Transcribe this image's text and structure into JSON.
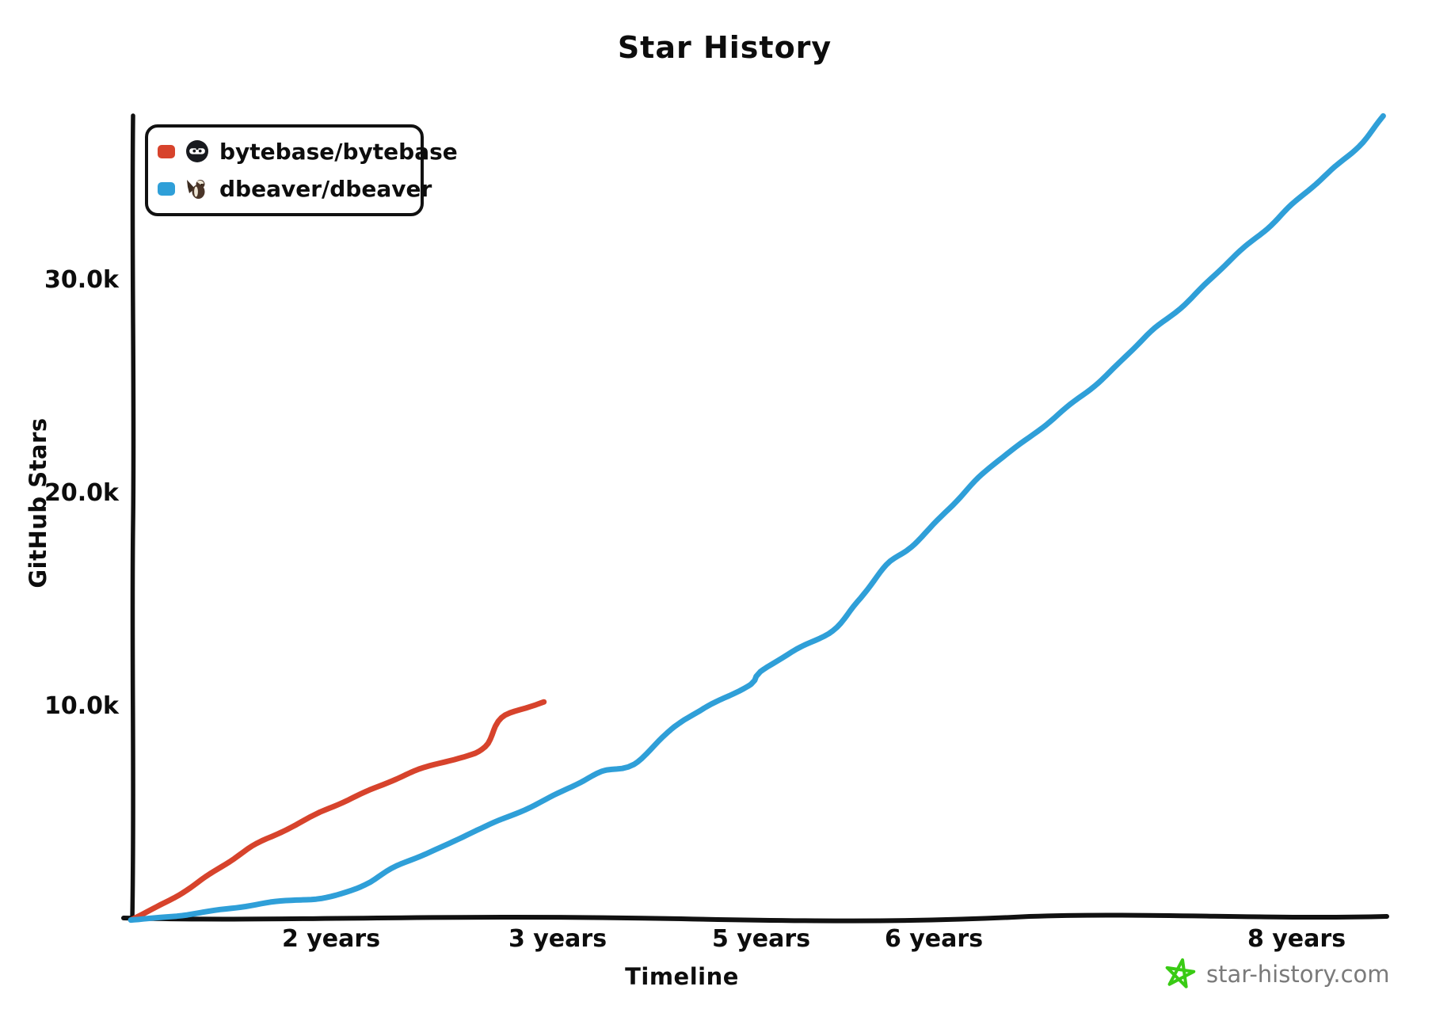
{
  "page": {
    "title": "Star History",
    "watermark_text": "star-history.com"
  },
  "chart": {
    "title": "Star History",
    "x_axis": {
      "label": "Timeline",
      "tick_labels": [
        "2 years",
        "3 years",
        "5 years",
        "6 years",
        "8 years"
      ]
    },
    "y_axis": {
      "label": "GitHub Stars",
      "tick_labels": [
        "10.0k",
        "20.0k",
        "30.0k"
      ]
    },
    "legend": [
      {
        "label": "bytebase/bytebase",
        "color": "#d7432c",
        "icon": "bytebase-avatar"
      },
      {
        "label": "dbeaver/dbeaver",
        "color": "#2f9fd8",
        "icon": "dbeaver-avatar"
      }
    ],
    "watermark": {
      "text": "star-history.com",
      "text_color": "#7a7a7a",
      "icon": "green-star-icon",
      "icon_color": "#39cb14"
    },
    "colors": {
      "axis": "#111111",
      "background": "#ffffff"
    }
  },
  "chart_data": {
    "type": "line",
    "title": "Star History",
    "xlabel": "Timeline",
    "ylabel": "GitHub Stars",
    "x_unit": "years since repo creation",
    "x_tick_years": [
      2,
      3,
      5,
      6,
      8
    ],
    "x_tick_labels": [
      "2 years",
      "3 years",
      "5 years",
      "6 years",
      "8 years"
    ],
    "y_ticks": [
      10000,
      20000,
      30000
    ],
    "y_tick_labels": [
      "10.0k",
      "20.0k",
      "30.0k"
    ],
    "ylim": [
      0,
      38500
    ],
    "xlim_years": [
      0,
      8.6
    ],
    "grid": false,
    "legend_position": "top-left",
    "series": [
      {
        "name": "bytebase/bytebase",
        "color": "#d7432c",
        "points": [
          [
            0,
            0
          ],
          [
            0.25,
            600
          ],
          [
            0.51,
            1300
          ],
          [
            0.75,
            2000
          ],
          [
            0.99,
            2700
          ],
          [
            1.22,
            3400
          ],
          [
            1.46,
            4000
          ],
          [
            1.7,
            4600
          ],
          [
            1.94,
            5200
          ],
          [
            2.11,
            5800
          ],
          [
            2.25,
            6400
          ],
          [
            2.39,
            7000
          ],
          [
            2.5,
            7400
          ],
          [
            2.6,
            7700
          ],
          [
            2.65,
            7900
          ],
          [
            2.69,
            8300
          ],
          [
            2.72,
            9100
          ],
          [
            2.75,
            9500
          ],
          [
            2.79,
            9700
          ],
          [
            2.86,
            9900
          ],
          [
            2.94,
            10200
          ]
        ]
      },
      {
        "name": "dbeaver/dbeaver",
        "color": "#2f9fd8",
        "points": [
          [
            0,
            0
          ],
          [
            0.35,
            150
          ],
          [
            0.67,
            350
          ],
          [
            1.0,
            500
          ],
          [
            1.3,
            700
          ],
          [
            1.65,
            900
          ],
          [
            2.0,
            1100
          ],
          [
            2.15,
            1700
          ],
          [
            2.29,
            2500
          ],
          [
            2.5,
            3400
          ],
          [
            2.64,
            4200
          ],
          [
            2.81,
            5000
          ],
          [
            3.0,
            5900
          ],
          [
            3.22,
            6400
          ],
          [
            3.44,
            6900
          ],
          [
            3.75,
            7300
          ],
          [
            4.14,
            9100
          ],
          [
            4.4,
            9800
          ],
          [
            4.6,
            10300
          ],
          [
            4.91,
            11000
          ],
          [
            5.0,
            11600
          ],
          [
            5.18,
            12600
          ],
          [
            5.41,
            13600
          ],
          [
            5.56,
            14900
          ],
          [
            5.73,
            16600
          ],
          [
            5.87,
            17500
          ],
          [
            6.1,
            19500
          ],
          [
            6.31,
            21200
          ],
          [
            6.53,
            22600
          ],
          [
            6.75,
            24200
          ],
          [
            6.97,
            25700
          ],
          [
            7.18,
            27400
          ],
          [
            7.36,
            28700
          ],
          [
            7.62,
            30900
          ],
          [
            7.84,
            32400
          ],
          [
            8.0,
            33700
          ],
          [
            8.19,
            35200
          ],
          [
            8.36,
            36500
          ],
          [
            8.48,
            37700
          ]
        ]
      }
    ]
  }
}
